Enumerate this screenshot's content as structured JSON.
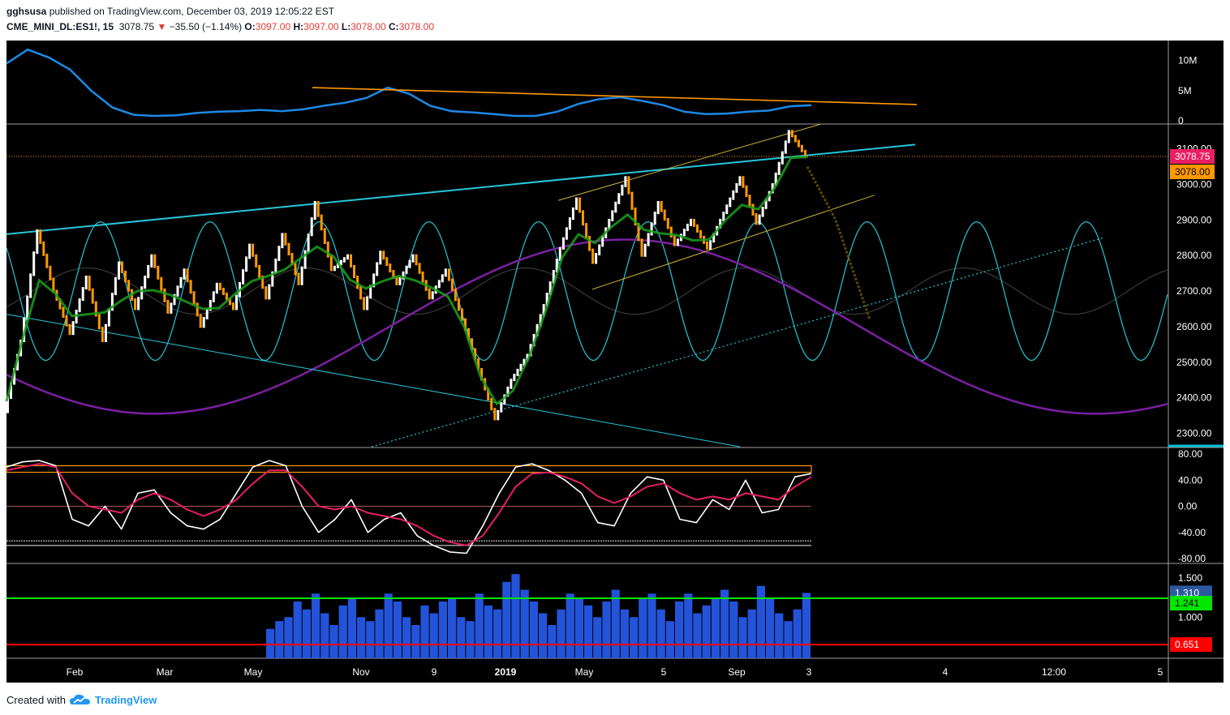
{
  "header": {
    "author": "gghsusa",
    "published_text": "published on TradingView.com, December 03, 2019 12:05:22 EST",
    "symbol": "CME_MINI_DL:ES1!, 15",
    "last": "3078.75",
    "change": "−35.50 (−1.14%)",
    "o_label": "O:",
    "o": "3097.00",
    "h_label": "H:",
    "h": "3097.00",
    "l_label": "L:",
    "l": "3078.00",
    "c_label": "C:",
    "c": "3078.00"
  },
  "footer": {
    "created_with": "Created with",
    "brand": "TradingView"
  },
  "colors": {
    "background": "#000000",
    "volume_line": "#1e88e5",
    "trend_orange": "#ff9800",
    "cyan_line": "#26c6da",
    "purple_wave": "#7b1fa2",
    "candle_up": "#ffffff",
    "candle_down": "#ff9800",
    "stoch_k": "#ffffff",
    "stoch_d": "#e91e63",
    "hist_bar": "#2962ff",
    "green_level": "#00e600",
    "red_level": "#ff0000"
  },
  "chart_data": [
    {
      "type": "line",
      "panel": "volume",
      "y_ticks": [
        "10M",
        "5M",
        "0"
      ],
      "series": [
        {
          "values": [
            9.5,
            11.8,
            10.5,
            8.5,
            5.0,
            2.2,
            1.0,
            0.8,
            0.9,
            1.3,
            1.5,
            1.6,
            1.8,
            1.6,
            1.9,
            2.5,
            3.0,
            3.8,
            5.5,
            4.5,
            2.5,
            1.6,
            1.4,
            1.1,
            0.8,
            0.8,
            1.5,
            2.8,
            3.6,
            3.9,
            3.3,
            2.6,
            1.5,
            1.1,
            1.2,
            1.5,
            1.7,
            2.4,
            2.6
          ]
        }
      ],
      "trendline": [
        5.5,
        2.7
      ]
    },
    {
      "type": "candlestick",
      "panel": "price",
      "x_ticks": [
        "Feb",
        "Mar",
        "May",
        "Nov",
        "9",
        "2019",
        "May",
        "5",
        "Sep",
        "3",
        "4",
        "12:00",
        "5"
      ],
      "y_ticks": [
        "3100.00",
        "3000.00",
        "2900.00",
        "2800.00",
        "2700.00",
        "2600.00",
        "2500.00",
        "2400.00",
        "2300.00"
      ],
      "ylim": [
        2260,
        3170
      ],
      "path": [
        2360,
        2560,
        2870,
        2700,
        2580,
        2740,
        2560,
        2780,
        2650,
        2800,
        2640,
        2760,
        2600,
        2720,
        2650,
        2830,
        2680,
        2860,
        2720,
        2950,
        2760,
        2800,
        2650,
        2810,
        2720,
        2800,
        2680,
        2760,
        2620,
        2480,
        2340,
        2450,
        2520,
        2660,
        2820,
        2960,
        2780,
        2900,
        3020,
        2800,
        2950,
        2830,
        2900,
        2820,
        2920,
        3020,
        2890,
        3000,
        3150,
        3080
      ],
      "price_labels": [
        "3078.75",
        "3078.00"
      ]
    },
    {
      "type": "line",
      "panel": "stochastic",
      "y_ticks": [
        "80.00",
        "40.00",
        "0.00",
        "-40.00",
        "-80.00"
      ],
      "ylim": [
        -80,
        80
      ],
      "series": [
        {
          "values": [
            60,
            68,
            70,
            62,
            -20,
            -30,
            0,
            -35,
            20,
            25,
            -10,
            -30,
            -35,
            -20,
            20,
            60,
            70,
            62,
            0,
            -40,
            -20,
            10,
            -40,
            -20,
            -10,
            -45,
            -60,
            -70,
            -72,
            -30,
            20,
            60,
            65,
            55,
            40,
            20,
            -25,
            -30,
            20,
            45,
            40,
            -20,
            -25,
            10,
            -5,
            40,
            -10,
            -5,
            45,
            50
          ]
        },
        {
          "values": [
            55,
            60,
            65,
            60,
            20,
            0,
            -5,
            -10,
            10,
            20,
            10,
            -5,
            -15,
            -5,
            10,
            35,
            55,
            55,
            30,
            0,
            -5,
            0,
            -10,
            -15,
            -20,
            -30,
            -45,
            -55,
            -60,
            -45,
            -10,
            30,
            50,
            52,
            45,
            35,
            15,
            5,
            15,
            30,
            35,
            20,
            10,
            15,
            10,
            20,
            15,
            10,
            30,
            45
          ]
        }
      ]
    },
    {
      "type": "bar",
      "panel": "histogram",
      "y_ticks": [
        "1.500",
        "1.000"
      ],
      "price_labels": [
        "1.310",
        "1.241",
        "0.651"
      ],
      "levels": {
        "green": 1.241,
        "red": 0.651
      },
      "values": [
        0.85,
        0.95,
        1.0,
        1.2,
        1.1,
        1.3,
        1.05,
        0.9,
        1.15,
        1.25,
        1.0,
        0.95,
        1.1,
        1.3,
        1.2,
        1.0,
        0.9,
        1.15,
        1.05,
        1.2,
        1.25,
        1.0,
        0.95,
        1.3,
        1.15,
        1.1,
        1.45,
        1.55,
        1.35,
        1.2,
        1.05,
        0.9,
        1.1,
        1.3,
        1.25,
        1.15,
        1.0,
        1.2,
        1.35,
        1.1,
        1.0,
        1.25,
        1.3,
        1.1,
        0.95,
        1.2,
        1.3,
        1.05,
        1.15,
        1.25,
        1.35,
        1.2,
        1.0,
        1.1,
        1.4,
        1.25,
        1.05,
        0.95,
        1.1,
        1.31
      ]
    }
  ]
}
